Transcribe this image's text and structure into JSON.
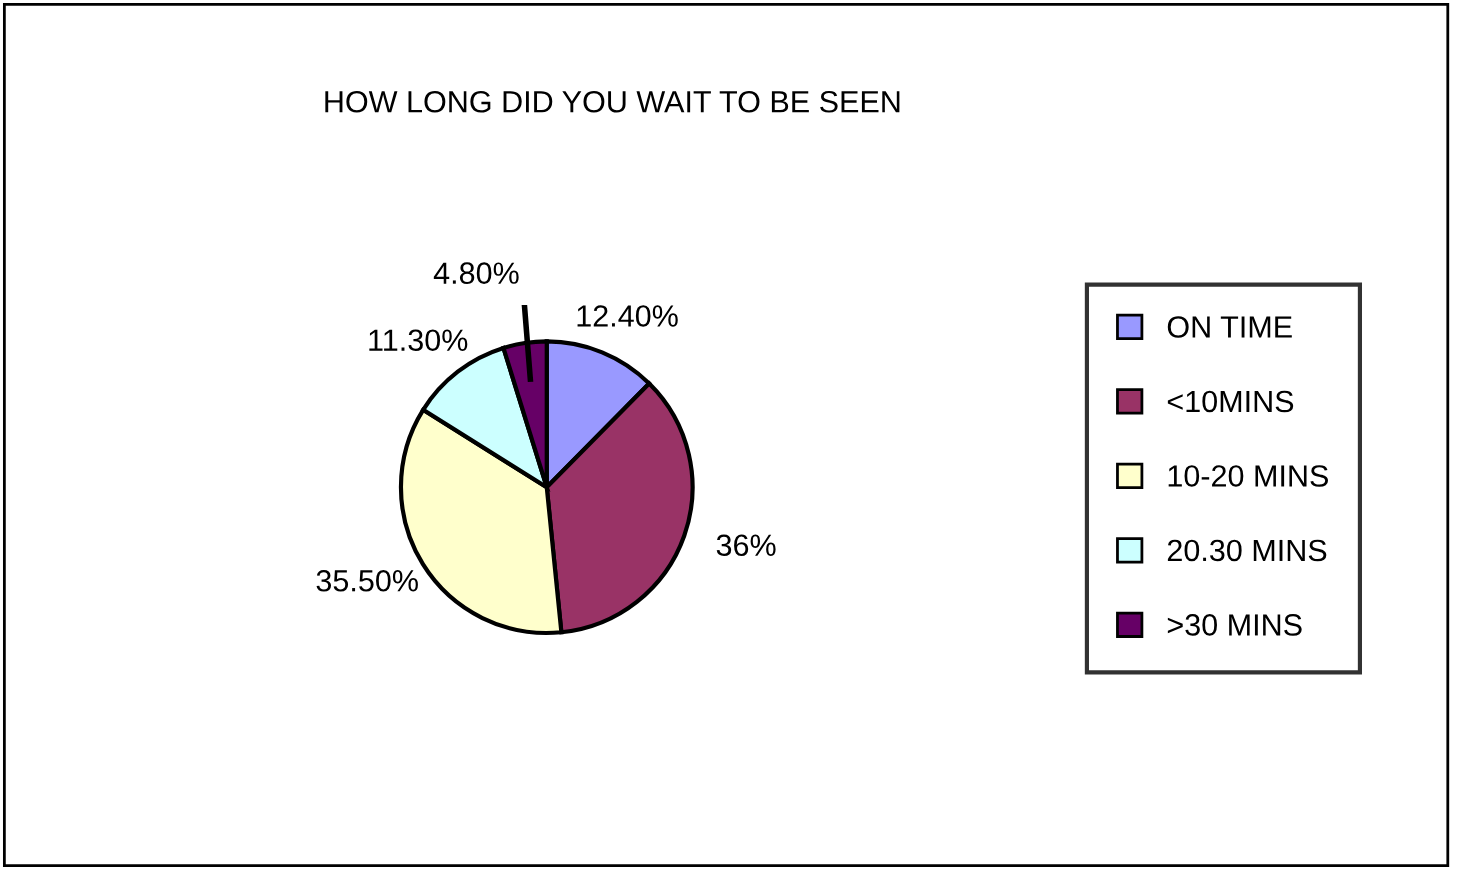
{
  "chart_data": {
    "type": "pie",
    "title": "HOW LONG DID YOU WAIT TO BE SEEN",
    "categories": [
      "ON TIME",
      "<10MINS",
      "10-20 MINS",
      "20.30 MINS",
      ">30 MINS"
    ],
    "values": [
      12.4,
      36,
      35.5,
      11.3,
      4.8
    ],
    "value_labels": [
      "12.40%",
      "36%",
      "35.50%",
      "11.30%",
      "4.80%"
    ],
    "colors": [
      "#9999ff",
      "#993366",
      "#ffffcc",
      "#ccffff",
      "#660066"
    ],
    "legend": "right"
  }
}
